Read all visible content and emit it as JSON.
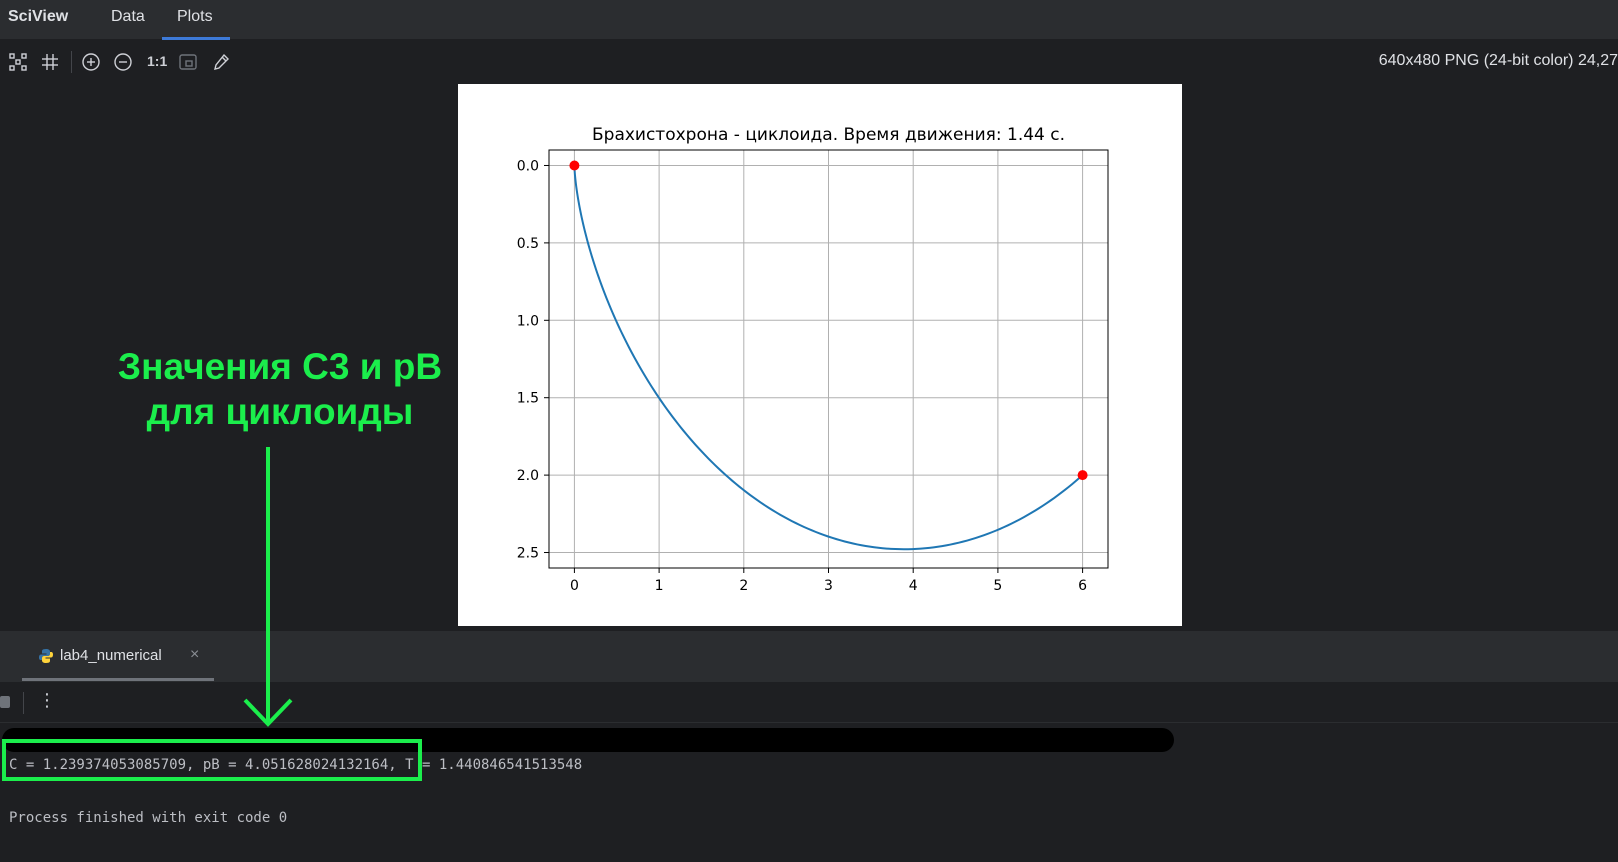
{
  "topbar": {
    "app_title": "SciView",
    "tabs": [
      "Data",
      "Plots"
    ],
    "active_tab": "Plots"
  },
  "toolbar": {
    "ratio_label": "1:1",
    "image_info": "640x480 PNG (24-bit color) 24,27"
  },
  "chart_data": {
    "type": "line",
    "title": "Брахистохрона - циклоида. Время движения: 1.44 с.",
    "xlabel": "",
    "ylabel": "",
    "xlim": [
      -0.3,
      6.3
    ],
    "ylim": [
      2.6,
      -0.1
    ],
    "y_inverted": true,
    "grid": true,
    "x_ticks": [
      0,
      1,
      2,
      3,
      4,
      5,
      6
    ],
    "y_ticks": [
      0.0,
      0.5,
      1.0,
      1.5,
      2.0,
      2.5
    ],
    "x_tick_labels": [
      "0",
      "1",
      "2",
      "3",
      "4",
      "5",
      "6"
    ],
    "y_tick_labels": [
      "0.0",
      "0.5",
      "1.0",
      "1.5",
      "2.0",
      "2.5"
    ],
    "series": [
      {
        "name": "cycloid",
        "color": "#1f77b4",
        "curve": {
          "C": 1.239374053085709,
          "pB": 4.051628024132164
        }
      }
    ],
    "markers": [
      {
        "x": 0,
        "y": 0,
        "color": "#ff0000"
      },
      {
        "x": 6,
        "y": 2,
        "color": "#ff0000"
      }
    ]
  },
  "run_panel": {
    "tab_label": "lab4_numerical",
    "kebab": "⋮"
  },
  "console": {
    "line_values": "C = 1.239374053085709, pB = 4.051628024132164, T = 1.440846541513548",
    "line_exit": "Process finished with exit code 0"
  },
  "annotation": {
    "line1": "Значения C3 и pB",
    "line2": "для циклоиды",
    "color": "#1bee4c"
  }
}
